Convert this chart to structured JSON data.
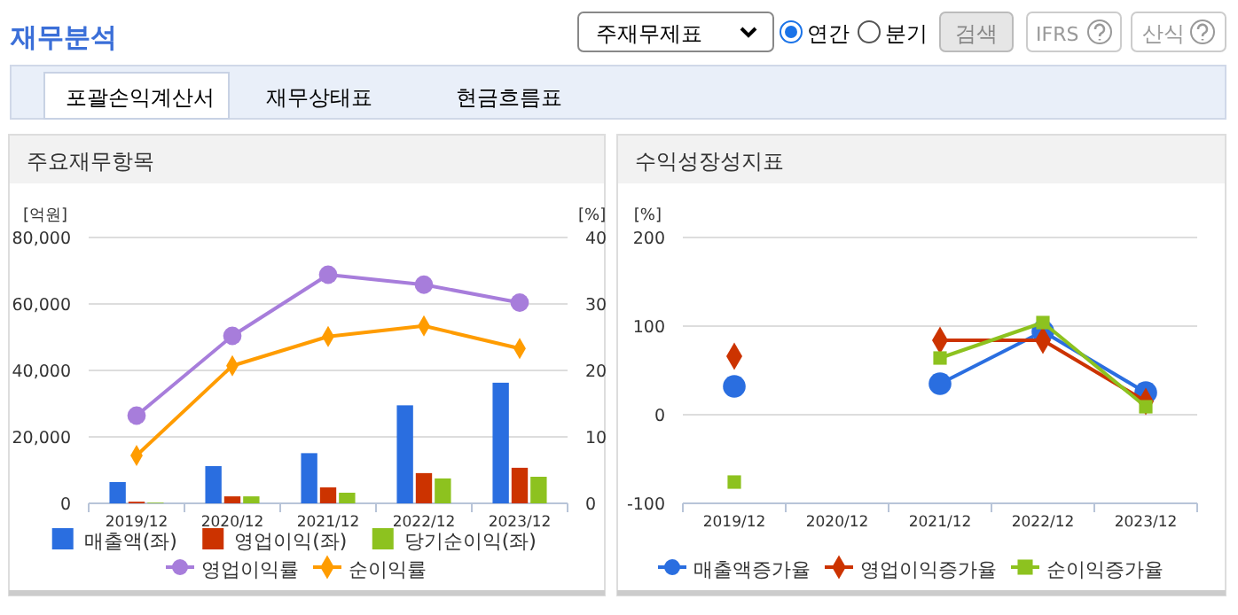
{
  "chart_data": [
    {
      "type": "other",
      "title": "재무분석",
      "annotations": [
        "주재무제표",
        "연간",
        "분기",
        "검색",
        "IFRS",
        "산식",
        "포괄손익계산서",
        "재무상태표",
        "현금흐름표"
      ]
    },
    {
      "type": "bar",
      "title": "주요재무항목",
      "ylabel": "[억원]",
      "y2label": "[%]",
      "categories": [
        "2019/12",
        "2020/12",
        "2021/12",
        "2022/12",
        "2023/12"
      ],
      "ylim": [
        0,
        80000
      ],
      "yticks": [
        0,
        {
          "value": 20000,
          "label": "20,000"
        },
        {
          "value": 40000,
          "label": "40,000"
        },
        {
          "value": 60000,
          "label": "60,000"
        },
        {
          "value": 80000,
          "label": "80,000"
        }
      ],
      "y2lim": [
        0,
        40
      ],
      "y2ticks": [
        0,
        10,
        20,
        30,
        40
      ],
      "grid": "y",
      "legend": "bottom",
      "series": [
        {
          "name": "매출액(좌)",
          "type": "bar",
          "color": "#2a6ee0",
          "values": [
            6400,
            11200,
            15100,
            29500,
            36300
          ]
        },
        {
          "name": "영업이익(좌)",
          "type": "bar",
          "color": "#cc3300",
          "values": [
            500,
            2100,
            4800,
            9100,
            10700
          ]
        },
        {
          "name": "당기순이익(좌)",
          "type": "bar",
          "color": "#8dc21f",
          "values": [
            200,
            2100,
            3200,
            7500,
            8000
          ]
        },
        {
          "name": "영업이익률",
          "type": "line",
          "axis": "y2",
          "marker": "circle",
          "color": "#a77ddb",
          "values": [
            13.2,
            25.2,
            34.4,
            32.9,
            30.2
          ]
        },
        {
          "name": "순이익률",
          "type": "line",
          "axis": "y2",
          "marker": "diamond",
          "color": "#ff9c00",
          "values": [
            7.2,
            20.7,
            25.1,
            26.7,
            23.3
          ]
        }
      ]
    },
    {
      "type": "line",
      "title": "수익성장성지표",
      "ylabel": "[%]",
      "categories": [
        "2019/12",
        "2020/12",
        "2021/12",
        "2022/12",
        "2023/12"
      ],
      "ylim": [
        -100,
        200
      ],
      "yticks": [
        -100,
        0,
        100,
        200
      ],
      "grid": "y",
      "legend": "bottom",
      "series": [
        {
          "name": "매출액증가율",
          "marker": "circle",
          "color": "#2a6ee0",
          "values": [
            32,
            null,
            35,
            94,
            25
          ]
        },
        {
          "name": "영업이익증가율",
          "marker": "diamond",
          "color": "#cc3300",
          "values": [
            66,
            null,
            84,
            84,
            15
          ]
        },
        {
          "name": "순이익증가율",
          "marker": "square",
          "color": "#8dc21f",
          "values": [
            -76,
            null,
            64,
            104,
            9
          ]
        }
      ]
    }
  ]
}
